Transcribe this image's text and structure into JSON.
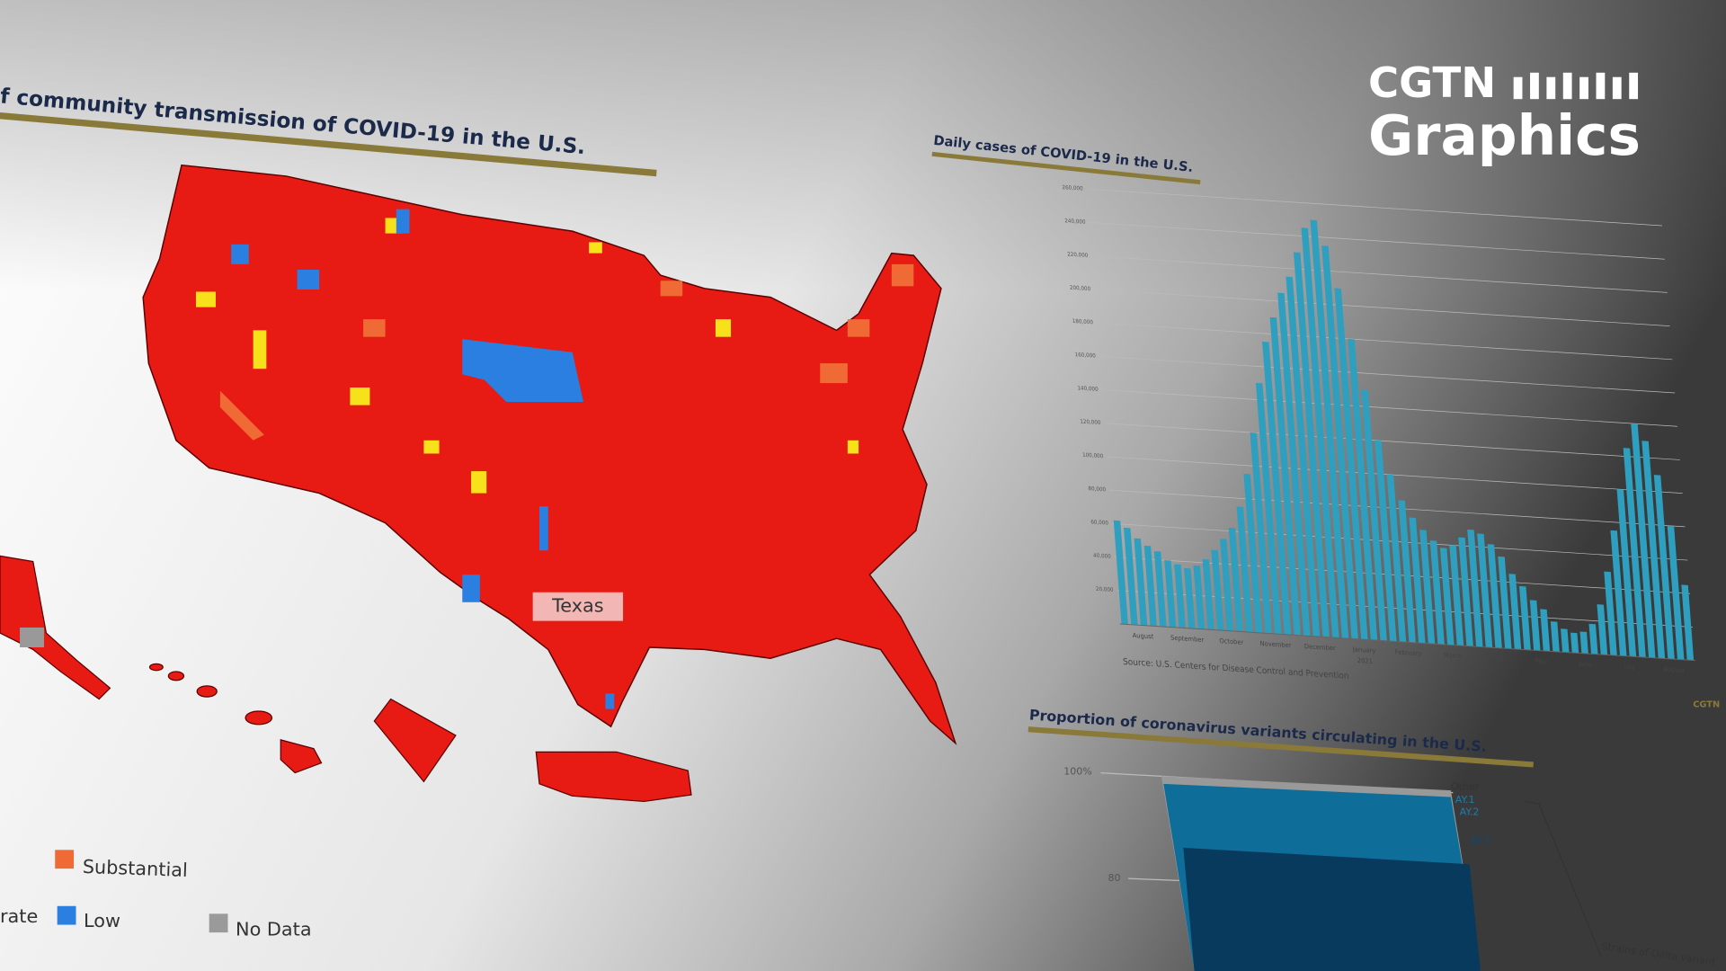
{
  "map": {
    "title": "f community transmission of COVID-19 in the U.S.",
    "state_label": "Texas",
    "legend": [
      "Substantial",
      "rate",
      "Low",
      "No Data"
    ]
  },
  "logo": {
    "line1": "CGTN",
    "line2": "Graphics",
    "small": "CGTN"
  },
  "chart_data": [
    {
      "type": "bar",
      "title": "Daily cases of COVID-19 in the U.S.",
      "color": "#2f9fbf",
      "values": [
        62000,
        58000,
        52000,
        48000,
        45000,
        40000,
        38000,
        36000,
        38000,
        42000,
        48000,
        55000,
        62000,
        75000,
        95000,
        120000,
        150000,
        175000,
        190000,
        205000,
        215000,
        230000,
        245000,
        250000,
        235000,
        210000,
        180000,
        150000,
        120000,
        100000,
        85000,
        75000,
        68000,
        62000,
        58000,
        60000,
        65000,
        70000,
        68000,
        62000,
        55000,
        45000,
        38000,
        30000,
        25000,
        18000,
        14000,
        12000,
        13000,
        18000,
        30000,
        50000,
        75000,
        100000,
        125000,
        140000,
        130000,
        110000,
        80000,
        45000
      ],
      "ylim": [
        0,
        260000
      ],
      "yticks": [
        {
          "value": 20000,
          "label": "20,000"
        },
        {
          "value": 40000,
          "label": "40,000"
        },
        {
          "value": 60000,
          "label": "60,000"
        },
        {
          "value": 80000,
          "label": "80,000"
        },
        {
          "value": 100000,
          "label": "100,000"
        },
        {
          "value": 120000,
          "label": "120,000"
        },
        {
          "value": 140000,
          "label": "140,000"
        },
        {
          "value": 160000,
          "label": "160,000"
        },
        {
          "value": 180000,
          "label": "180,000"
        },
        {
          "value": 200000,
          "label": "200,000"
        },
        {
          "value": 220000,
          "label": "220,000"
        },
        {
          "value": 240000,
          "label": "240,000"
        },
        {
          "value": 260000,
          "label": "260,000"
        }
      ],
      "month_labels": [
        "August",
        "September",
        "October",
        "November",
        "December",
        "January",
        "February",
        "March",
        "April",
        "May",
        "June",
        "July",
        "August"
      ],
      "year_label": "2021",
      "source": "Source: U.S. Centers for Disease Control and Prevention"
    },
    {
      "type": "area",
      "title": "Proportion of coronavirus variants circulating in the U.S.",
      "yticks": [
        {
          "value": 100,
          "label": "100%"
        },
        80
      ],
      "series_labels": [
        "Other",
        "AY.1",
        "AY.2",
        "AY.3"
      ],
      "axis_note": "Strains of Delta variant"
    }
  ]
}
